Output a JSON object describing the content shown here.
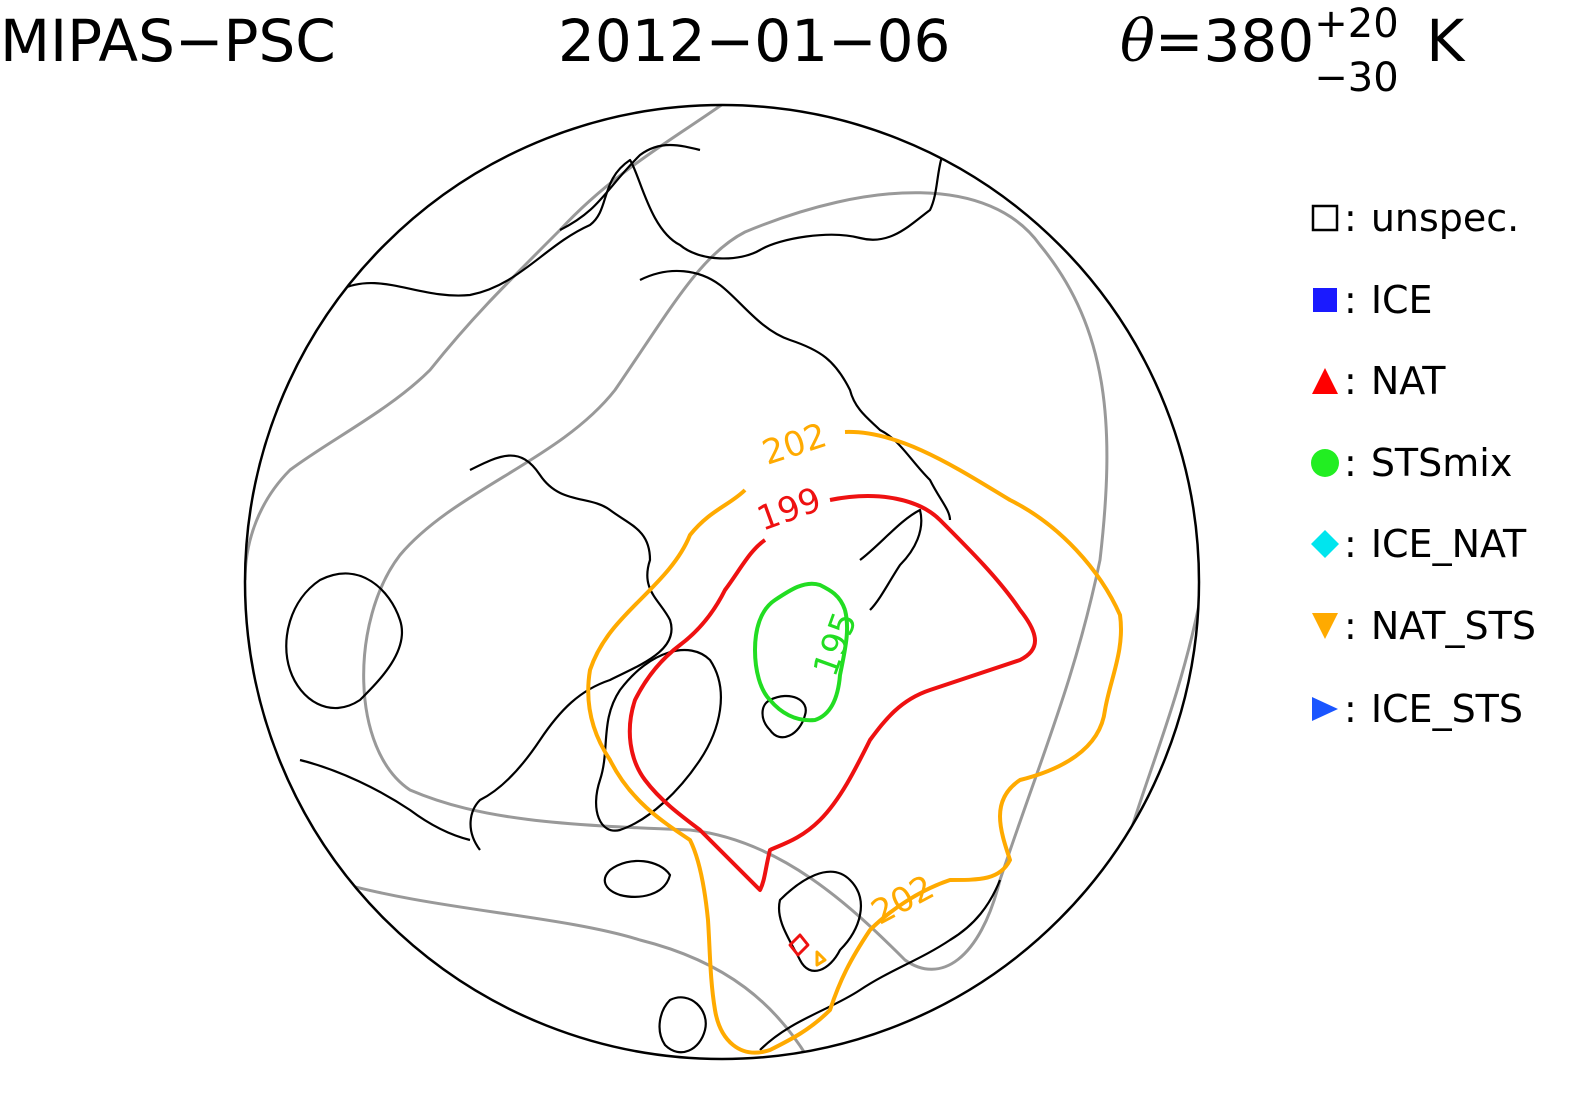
{
  "title": "MIPAS−PSC",
  "date": "2012−01−06",
  "theta": {
    "symbol": "θ",
    "equals": "=",
    "value": "380",
    "plus": "+20",
    "minus": "−30",
    "unit": "K"
  },
  "contours": [
    {
      "level": "195",
      "color": "#22dd22"
    },
    {
      "level": "199",
      "color": "#ee1111"
    },
    {
      "level": "202",
      "color": "#ffaa00"
    }
  ],
  "legend": [
    {
      "label": "unspec.",
      "shape": "open-square",
      "color": "#000000"
    },
    {
      "label": "ICE",
      "shape": "filled-square",
      "color": "#1a1aff"
    },
    {
      "label": "NAT",
      "shape": "triangle-up",
      "color": "#ff0000"
    },
    {
      "label": "STSmix",
      "shape": "circle",
      "color": "#22ee22"
    },
    {
      "label": "ICE_NAT",
      "shape": "diamond",
      "color": "#00e5ee"
    },
    {
      "label": "NAT_STS",
      "shape": "triangle-down",
      "color": "#ffaa00"
    },
    {
      "label": "ICE_STS",
      "shape": "triangle-right",
      "color": "#1a55ff"
    }
  ]
}
